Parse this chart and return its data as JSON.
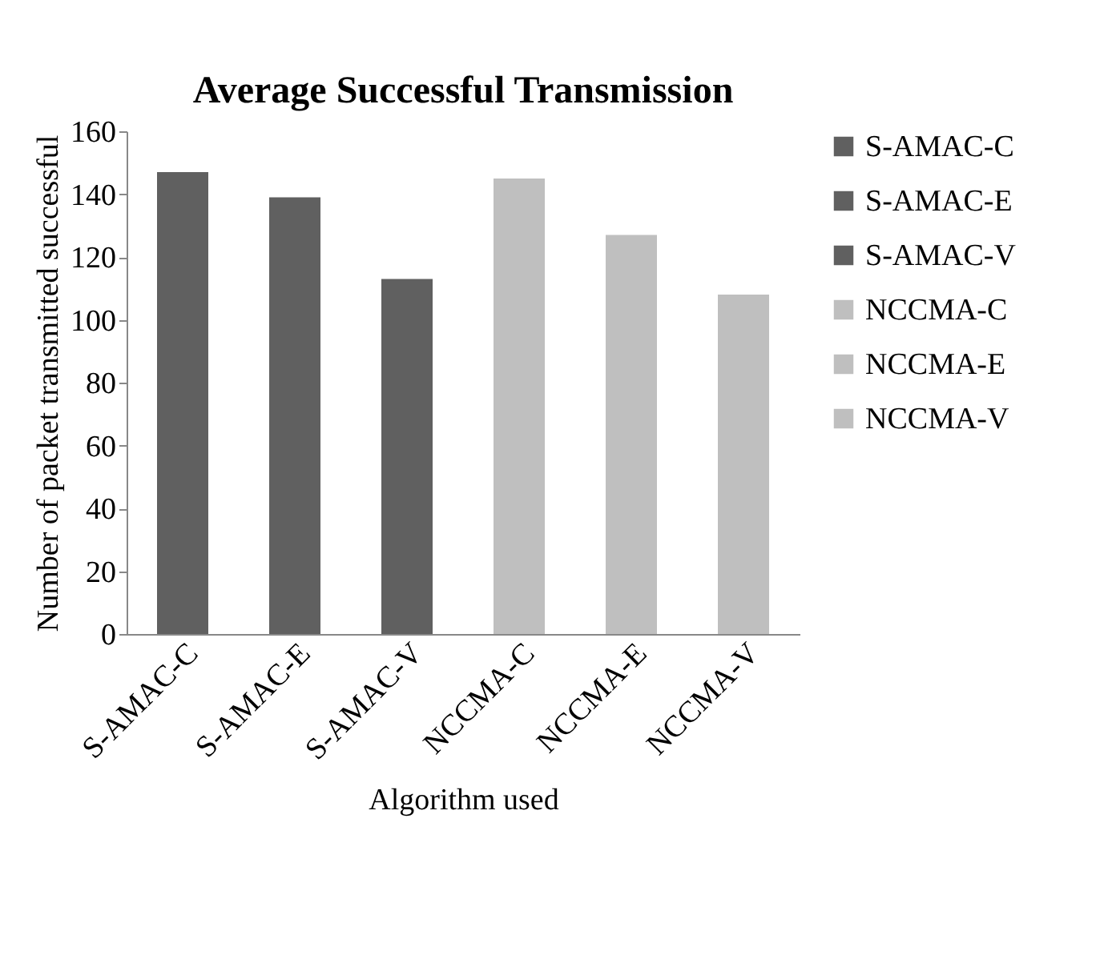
{
  "chart_data": {
    "type": "bar",
    "title": "Average Successful Transmission",
    "xlabel": "Algorithm used",
    "ylabel": "Number of packet transmitted successful",
    "categories": [
      "S-AMAC-C",
      "S-AMAC-E",
      "S-AMAC-V",
      "NCCMA-C",
      "NCCMA-E",
      "NCCMA-V"
    ],
    "series": [
      {
        "name": "S-AMAC-C",
        "color": "#606060",
        "values": [
          147,
          null,
          null,
          null,
          null,
          null
        ]
      },
      {
        "name": "S-AMAC-E",
        "color": "#606060",
        "values": [
          null,
          139,
          null,
          null,
          null,
          null
        ]
      },
      {
        "name": "S-AMAC-V",
        "color": "#606060",
        "values": [
          null,
          null,
          113,
          null,
          null,
          null
        ]
      },
      {
        "name": "NCCMA-C",
        "color": "#bfbfbf",
        "values": [
          null,
          null,
          null,
          145,
          null,
          null
        ]
      },
      {
        "name": "NCCMA-E",
        "color": "#bfbfbf",
        "values": [
          null,
          null,
          null,
          null,
          127,
          null
        ]
      },
      {
        "name": "NCCMA-V",
        "color": "#bfbfbf",
        "values": [
          null,
          null,
          null,
          null,
          null,
          108
        ]
      }
    ],
    "ylim": [
      0,
      160
    ],
    "yticks": [
      0,
      20,
      40,
      60,
      80,
      100,
      120,
      140,
      160
    ],
    "grid": false,
    "legend": "right"
  }
}
